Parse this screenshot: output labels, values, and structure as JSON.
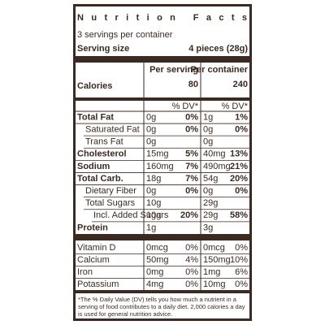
{
  "title": "Nutrition Facts",
  "servings": "3 servings per container",
  "serving_size": {
    "label": "Serving size",
    "value": "4 pieces (28g)"
  },
  "columns": {
    "serving": "Per serving",
    "container": "Per container"
  },
  "calories": {
    "label": "Calories",
    "serving": "80",
    "container": "240"
  },
  "dv_header": {
    "serving": "% DV*",
    "container": "% DV*"
  },
  "nutrients": [
    {
      "name": "Total Fat",
      "serving_amount": "0g",
      "serving_dv": "0%",
      "container_amount": "1g",
      "container_dv": "1%"
    },
    {
      "name": "Saturated Fat",
      "serving_amount": "0g",
      "serving_dv": "0%",
      "container_amount": "0g",
      "container_dv": "0%"
    },
    {
      "name": "Trans Fat",
      "serving_amount": "0g",
      "container_amount": "0g"
    },
    {
      "name": "Cholesterol",
      "serving_amount": "15mg",
      "serving_dv": "5%",
      "container_amount": "40mg",
      "container_dv": "13%"
    },
    {
      "name": "Sodium",
      "serving_amount": "160mg",
      "serving_dv": "7%",
      "container_amount": "490mg",
      "container_dv": "21%"
    },
    {
      "name": "Total Carb.",
      "serving_amount": "18g",
      "serving_dv": "7%",
      "container_amount": "54g",
      "container_dv": "20%"
    },
    {
      "name": "Dietary Fiber",
      "serving_amount": "0g",
      "serving_dv": "0%",
      "container_amount": "0g",
      "container_dv": "0%"
    },
    {
      "name": "Total Sugars",
      "serving_amount": "10g",
      "container_amount": "29g"
    },
    {
      "name": "Incl. Added Sugars",
      "serving_amount": "10g",
      "serving_dv": "20%",
      "container_amount": "29g",
      "container_dv": "58%"
    },
    {
      "name": "Protein",
      "serving_amount": "1g",
      "container_amount": "3g"
    }
  ],
  "micronutrients": [
    {
      "name": "Vitamin D",
      "serving_amount": "0mcg",
      "serving_dv": "0%",
      "container_amount": "0mcg",
      "container_dv": "0%"
    },
    {
      "name": "Calcium",
      "serving_amount": "50mg",
      "serving_dv": "4%",
      "container_amount": "150mg",
      "container_dv": "10%"
    },
    {
      "name": "Iron",
      "serving_amount": "0mg",
      "serving_dv": "0%",
      "container_amount": "1mg",
      "container_dv": "6%"
    },
    {
      "name": "Potassium",
      "serving_amount": "4mg",
      "serving_dv": "0%",
      "container_amount": "10mg",
      "container_dv": "0%"
    }
  ],
  "footnote": "*The % Daily Value (DV) tells you how much a nutrient in a serving of food contributes to a daily diet. 2,000 calories a day is used for general nutrition advice."
}
